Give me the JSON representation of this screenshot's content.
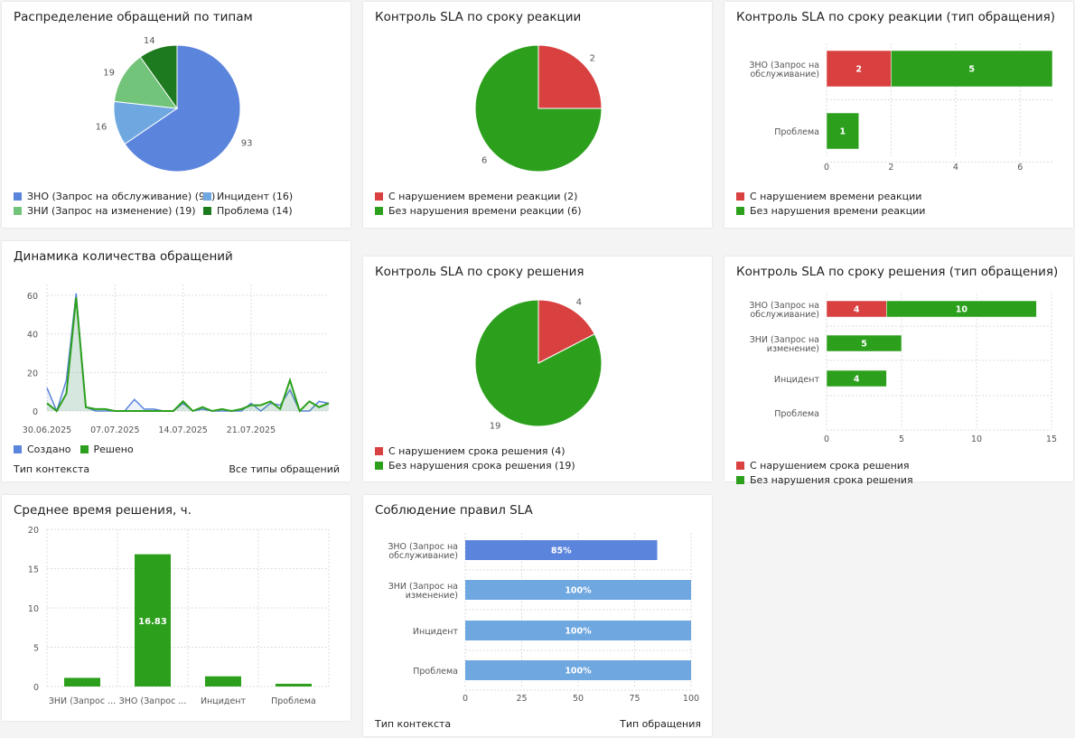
{
  "colors": {
    "blue": "#5b84dc",
    "lightblue": "#6fa8e0",
    "lightgreen": "#72c47a",
    "darkgreen": "#1e7a1e",
    "red": "#d94040",
    "green": "#2ca01c"
  },
  "chart_data": [
    {
      "id": "types",
      "type": "pie",
      "title": "Распределение обращений по типам",
      "labels": [
        "ЗНО (Запрос на обслуживание)",
        "Инцидент",
        "ЗНИ (Запрос на изменение)",
        "Проблема"
      ],
      "values": [
        93,
        16,
        19,
        14
      ],
      "legend": [
        "ЗНО (Запрос на обслуживание) (93)",
        "Инцидент (16)",
        "ЗНИ (Запрос на изменение) (19)",
        "Проблема (14)"
      ]
    },
    {
      "id": "sla_react",
      "type": "pie",
      "title": "Контроль SLA по сроку реакции",
      "labels": [
        "С нарушением времени реакции",
        "Без нарушения времени реакции"
      ],
      "values": [
        2,
        6
      ],
      "legend": [
        "С нарушением времени реакции (2)",
        "Без нарушения времени реакции (6)"
      ]
    },
    {
      "id": "sla_react_type",
      "type": "bar",
      "orientation": "horizontal",
      "stacked": true,
      "title": "Контроль SLA по сроку реакции (тип обращения)",
      "categories": [
        "ЗНО (Запрос на обслуживание)",
        "Проблема"
      ],
      "category_labels": [
        [
          "ЗНО (Запрос на",
          "обслуживание)"
        ],
        [
          "Проблема"
        ]
      ],
      "series": [
        {
          "name": "С нарушением времени реакции",
          "values": [
            2,
            0
          ]
        },
        {
          "name": "Без нарушения времени реакции",
          "values": [
            5,
            1
          ]
        }
      ],
      "xlim": [
        0,
        7
      ],
      "xticks": [
        0,
        2,
        4,
        6
      ]
    },
    {
      "id": "dynamics",
      "type": "line",
      "title": "Динамика количества обращений",
      "xticks": [
        "30.06.2025",
        "07.07.2025",
        "14.07.2025",
        "21.07.2025"
      ],
      "yticks": [
        0,
        20,
        40,
        60
      ],
      "ylim": [
        0,
        65
      ],
      "series": [
        {
          "name": "Создано",
          "values": [
            12,
            0,
            16,
            61,
            2,
            0,
            0,
            0,
            0,
            6,
            1,
            1,
            0,
            0,
            4,
            0,
            1,
            0,
            0,
            0,
            0,
            4,
            0,
            4,
            3,
            11,
            0,
            0,
            5,
            4
          ]
        },
        {
          "name": "Решено",
          "values": [
            4,
            0,
            9,
            59,
            2,
            1,
            1,
            0,
            0,
            0,
            0,
            0,
            0,
            0,
            5,
            0,
            2,
            0,
            1,
            0,
            1,
            3,
            3,
            5,
            1,
            16,
            0,
            5,
            2,
            4
          ]
        }
      ],
      "footer_left": "Тип контекста",
      "footer_right": "Все типы обращений"
    },
    {
      "id": "sla_resolve",
      "type": "pie",
      "title": "Контроль SLA по сроку решения",
      "labels": [
        "С нарушением срока решения",
        "Без нарушения срока решения"
      ],
      "values": [
        4,
        19
      ],
      "legend": [
        "С нарушением срока решения (4)",
        "Без нарушения срока решения (19)"
      ]
    },
    {
      "id": "sla_resolve_type",
      "type": "bar",
      "orientation": "horizontal",
      "stacked": true,
      "title": "Контроль SLA по сроку решения (тип обращения)",
      "categories": [
        "ЗНО (Запрос на обслуживание)",
        "ЗНИ (Запрос на изменение)",
        "Инцидент",
        "Проблема"
      ],
      "category_labels": [
        [
          "ЗНО (Запрос на",
          "обслуживание)"
        ],
        [
          "ЗНИ (Запрос на",
          "изменение)"
        ],
        [
          "Инцидент"
        ],
        [
          "Проблема"
        ]
      ],
      "series": [
        {
          "name": "С нарушением срока решения",
          "values": [
            4,
            0,
            0,
            0
          ]
        },
        {
          "name": "Без нарушения срока решения",
          "values": [
            10,
            5,
            4,
            0
          ]
        }
      ],
      "xlim": [
        0,
        15
      ],
      "xticks": [
        0,
        5,
        10,
        15
      ]
    },
    {
      "id": "avg_time",
      "type": "bar",
      "orientation": "vertical",
      "title": "Среднее время решения, ч.",
      "categories": [
        "ЗНИ (Запрос ...",
        "ЗНО (Запрос ...",
        "Инцидент",
        "Проблема"
      ],
      "values": [
        1.1,
        16.83,
        1.3,
        0.35
      ],
      "data_labels": [
        "",
        "16.83",
        "",
        ""
      ],
      "ylim": [
        0,
        20
      ],
      "yticks": [
        0,
        5,
        10,
        15,
        20
      ]
    },
    {
      "id": "sla_compliance",
      "type": "bar",
      "orientation": "horizontal",
      "title": "Соблюдение правил SLA",
      "categories": [
        "ЗНО (Запрос на обслуживание)",
        "ЗНИ (Запрос на изменение)",
        "Инцидент",
        "Проблема"
      ],
      "category_labels": [
        [
          "ЗНО (Запрос на",
          "обслуживание)"
        ],
        [
          "ЗНИ (Запрос на",
          "изменение)"
        ],
        [
          "Инцидент"
        ],
        [
          "Проблема"
        ]
      ],
      "values": [
        85,
        100,
        100,
        100
      ],
      "data_labels": [
        "85%",
        "100%",
        "100%",
        "100%"
      ],
      "xlim": [
        0,
        100
      ],
      "xticks": [
        0,
        25,
        50,
        75,
        100
      ],
      "footer_left": "Тип контекста",
      "footer_right": "Тип обращения"
    }
  ]
}
